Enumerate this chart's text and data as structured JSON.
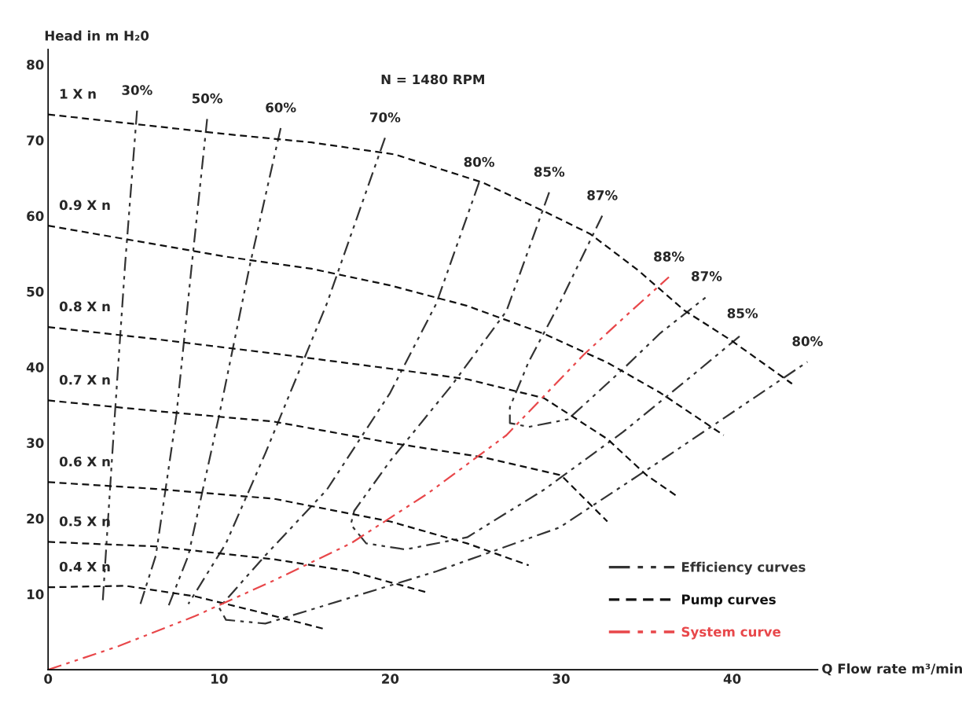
{
  "chart_data": {
    "type": "line",
    "xlabel": "Q Flow rate m³/min",
    "ylabel": "Head in m H₂0",
    "xlim": [
      0,
      45
    ],
    "xticks": [
      0,
      10,
      20,
      30,
      40
    ],
    "ylim": [
      0,
      82
    ],
    "yticks": [
      10,
      20,
      30,
      40,
      50,
      60,
      70,
      80
    ],
    "grid": false,
    "legend": "bottom right",
    "marker": "none",
    "series": [
      {
        "name": "Efficiency curves",
        "line_style": "dashdot",
        "color": "#333333",
        "x": [
          5.2,
          4.5,
          3.9,
          3.2
        ],
        "values": [
          73.9,
          53.5,
          33.6,
          9.2
        ]
      },
      {
        "line_style": "dashdot",
        "color": "#333333",
        "x": [
          9.3,
          8.4,
          7.5,
          6.3,
          5.4
        ],
        "values": [
          72.8,
          53.5,
          33.6,
          15.1,
          8.7
        ]
      },
      {
        "line_style": "dashdot",
        "color": "#333333",
        "x": [
          13.6,
          11.8,
          10.0,
          8.2,
          7.0
        ],
        "values": [
          71.6,
          53.5,
          33.6,
          15.1,
          8.2
        ]
      },
      {
        "line_style": "dashdot",
        "color": "#333333",
        "x": [
          19.7,
          16.3,
          12.7,
          10.4,
          8.2
        ],
        "values": [
          70.3,
          48.4,
          28.6,
          16.7,
          8.7
        ]
      },
      {
        "line_style": "dashdot",
        "color": "#333333",
        "x": [
          25.2,
          22.7,
          20.0,
          16.3,
          12.7,
          10.0,
          10.4,
          12.7,
          17.2,
          22.7,
          29.9,
          35.8,
          40.4,
          44.4
        ],
        "values": [
          64.4,
          48.4,
          36.6,
          23.8,
          15.1,
          8.2,
          6.6,
          6.1,
          9.2,
          13.0,
          18.8,
          27.6,
          34.6,
          40.7
        ]
      },
      {
        "line_style": "dashdot",
        "color": "#333333",
        "x": [
          29.3,
          26.8,
          23.6,
          20.0,
          17.9,
          17.7,
          18.6,
          20.9,
          24.5,
          29.0,
          33.6,
          38.1,
          40.6
        ],
        "values": [
          63.1,
          47.4,
          37.6,
          27.6,
          21.0,
          19.2,
          16.7,
          15.9,
          17.5,
          23.8,
          31.4,
          39.7,
          44.4
        ]
      },
      {
        "line_style": "dashdot",
        "color": "#333333",
        "x": [
          32.4,
          29.9,
          28.1,
          27.0,
          27.0,
          28.1,
          30.4,
          33.6,
          35.8,
          38.5
        ],
        "values": [
          60.0,
          48.4,
          40.7,
          34.7,
          32.6,
          32.1,
          33.1,
          39.7,
          44.5,
          49.3
        ]
      },
      {
        "name": "Pump curves",
        "line_style": "dashed",
        "color": "#111111",
        "x": [
          0,
          10.4,
          15.4,
          20.3,
          25.4,
          29.0,
          31.7,
          34.5,
          37.2,
          39.9,
          43.5
        ],
        "values": [
          73.4,
          70.8,
          69.7,
          68.1,
          64.4,
          60.6,
          57.6,
          52.8,
          47.5,
          43.6,
          37.8
        ]
      },
      {
        "line_style": "dashed",
        "color": "#111111",
        "x": [
          0,
          10.4,
          15.4,
          20.0,
          24.5,
          29.0,
          32.7,
          35.8,
          39.5
        ],
        "values": [
          58.7,
          54.6,
          53.0,
          50.8,
          48.1,
          44.4,
          40.6,
          36.6,
          31.0
        ]
      },
      {
        "line_style": "dashed",
        "color": "#111111",
        "x": [
          0,
          6.3,
          13.2,
          20.0,
          24.5,
          29.0,
          32.7,
          35.0,
          36.8
        ],
        "values": [
          45.3,
          43.7,
          41.8,
          39.8,
          38.4,
          35.9,
          30.5,
          25.7,
          22.9
        ]
      },
      {
        "line_style": "dashed",
        "color": "#111111",
        "x": [
          0,
          6.3,
          13.2,
          20.0,
          25.4,
          30.0,
          32.7
        ],
        "values": [
          35.6,
          34.2,
          32.8,
          30.0,
          28.1,
          25.7,
          19.6
        ]
      },
      {
        "line_style": "dashed",
        "color": "#111111",
        "x": [
          0,
          6.3,
          13.2,
          20.0,
          24.5,
          28.1
        ],
        "values": [
          24.8,
          23.9,
          22.6,
          19.6,
          16.7,
          13.8
        ]
      },
      {
        "line_style": "dashed",
        "color": "#111111",
        "x": [
          0,
          6.3,
          13.2,
          17.7,
          22.2
        ],
        "values": [
          16.9,
          16.3,
          14.6,
          13.0,
          10.2
        ]
      },
      {
        "line_style": "dashed",
        "color": "#111111",
        "x": [
          0,
          4.5,
          8.6,
          12.2,
          16.3
        ],
        "values": [
          10.9,
          11.1,
          9.7,
          7.7,
          5.3
        ]
      },
      {
        "name": "System curve",
        "line_style": "dashdot",
        "color": "#e8474a",
        "x": [
          0,
          4.1,
          8.6,
          13.2,
          17.7,
          22.2,
          26.8,
          31.3,
          33.6,
          36.3
        ],
        "values": [
          0,
          3.1,
          7.1,
          11.8,
          16.7,
          23.3,
          31.0,
          41.6,
          46.4,
          51.9
        ]
      }
    ],
    "annotations": [
      "N = 1480 RPM",
      {
        "text": "1 X n",
        "x": 0,
        "y": 73.4
      },
      {
        "text": "0.9 X n",
        "x": 0,
        "y": 58.7
      },
      {
        "text": "0.8 X n",
        "x": 0,
        "y": 45.3
      },
      {
        "text": "0.7 X n",
        "x": 0,
        "y": 35.6
      },
      {
        "text": "0.6 X n",
        "x": 0,
        "y": 24.8
      },
      {
        "text": "0.5 X n",
        "x": 0,
        "y": 16.9
      },
      {
        "text": "0.4 X n",
        "x": 0,
        "y": 10.9
      },
      {
        "text": "30%",
        "x": 5.2,
        "y": 73.9
      },
      {
        "text": "50%",
        "x": 9.3,
        "y": 72.8
      },
      {
        "text": "60%",
        "x": 13.6,
        "y": 71.6
      },
      {
        "text": "70%",
        "x": 19.7,
        "y": 70.3
      },
      {
        "text": "80%",
        "x": 25.2,
        "y": 64.4
      },
      {
        "text": "85%",
        "x": 29.3,
        "y": 63.1
      },
      {
        "text": "87%",
        "x": 32.4,
        "y": 60.0
      },
      {
        "text": "88%",
        "x": 36.3,
        "y": 51.9
      },
      {
        "text": "87%",
        "x": 38.5,
        "y": 49.3
      },
      {
        "text": "85%",
        "x": 40.6,
        "y": 44.4
      },
      {
        "text": "80%",
        "x": 44.4,
        "y": 40.7
      }
    ]
  }
}
